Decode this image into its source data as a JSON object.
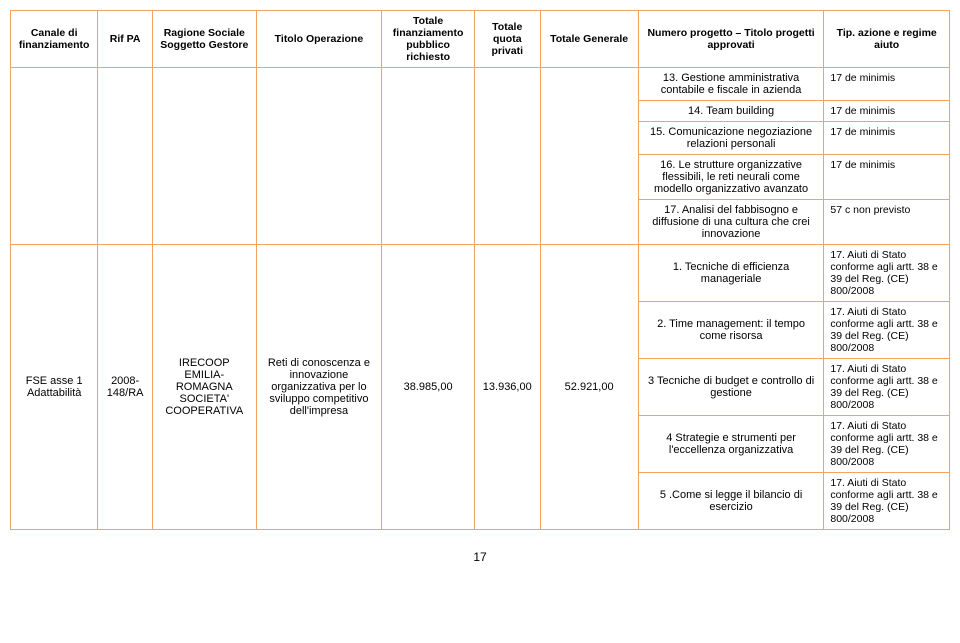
{
  "headers": {
    "canale": "Canale di finanziamento",
    "rif": "Rif PA",
    "ragione": "Ragione Sociale Soggetto Gestore",
    "titolo": "Titolo Operazione",
    "pubblico": "Totale finanziamento pubblico richiesto",
    "privati": "Totale quota privati",
    "generale": "Totale Generale",
    "progetto": "Numero progetto – Titolo progetti approvati",
    "tip": "Tip. azione e regime aiuto"
  },
  "proj13": "13. Gestione amministrativa contabile e fiscale in azienda",
  "aid13": "17 de minimis",
  "proj14": "14. Team building",
  "aid14": "17 de minimis",
  "proj15": "15. Comunicazione negoziazione relazioni personali",
  "aid15": "17 de minimis",
  "proj16": "16. Le strutture organizzative flessibili, le reti neurali come modello organizzativo avanzato",
  "aid16": "17 de minimis",
  "proj17": "17. Analisi del fabbisogno e diffusione di una cultura che crei innovazione",
  "aid17": "57 c non previsto",
  "row2": {
    "canale": "FSE asse 1 Adattabilità",
    "rif": "2008-148/RA",
    "ragione": "IRECOOP EMILIA-ROMAGNA SOCIETA' COOPERATIVA",
    "titolo": "Reti di conoscenza e innovazione organizzativa per lo sviluppo competitivo dell'impresa",
    "pubblico": "38.985,00",
    "privati": "13.936,00",
    "generale": "52.921,00"
  },
  "p1": "1. Tecniche di efficienza manageriale",
  "a1": "17. Aiuti di Stato conforme agli artt. 38 e 39 del Reg. (CE) 800/2008",
  "p2": "2. Time management: il tempo come risorsa",
  "a2": "17. Aiuti di Stato conforme agli artt. 38 e 39 del Reg. (CE) 800/2008",
  "p3": "3 Tecniche di budget e controllo di gestione",
  "a3": "17. Aiuti di Stato conforme agli artt. 38 e 39 del Reg. (CE) 800/2008",
  "p4": "4 Strategie e strumenti per l'eccellenza organizzativa",
  "a4": "17. Aiuti di Stato conforme agli artt. 38 e 39 del Reg. (CE) 800/2008",
  "p5": "5 .Come si legge il bilancio di esercizio",
  "a5": "17. Aiuti di Stato conforme agli artt. 38 e 39 del Reg. (CE) 800/2008",
  "pageNumber": "17"
}
